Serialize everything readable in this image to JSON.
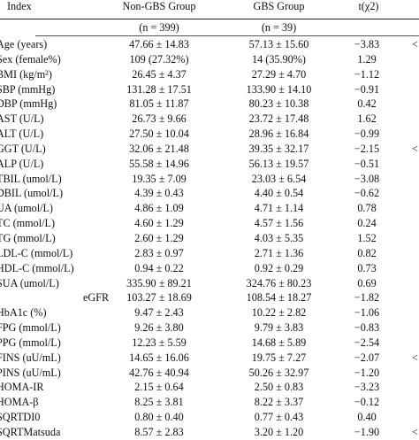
{
  "header": {
    "index": "Index",
    "col1": "Non-GBS Group",
    "col2": "GBS Group",
    "col3": "t(χ2)",
    "col1_n": "(n = 399)",
    "col2_n": "(n = 39)"
  },
  "rows": [
    {
      "label": "Age (years)",
      "v1": "47.66 ± 14.83",
      "v2": "57.13 ± 15.60",
      "t": "−3.83",
      "p": "<"
    },
    {
      "label": "Sex (female%)",
      "v1": "109 (27.32%)",
      "v2": "14 (35.90%)",
      "t": "1.29",
      "p": ""
    },
    {
      "label": "BMI (kg/m²)",
      "v1": "26.45 ± 4.37",
      "v2": "27.29 ± 4.70",
      "t": "−1.12",
      "p": ""
    },
    {
      "label": "SBP (mmHg)",
      "v1": "131.28 ± 17.51",
      "v2": "133.90 ± 14.10",
      "t": "−0.91",
      "p": ""
    },
    {
      "label": "DBP (mmHg)",
      "v1": "81.05 ± 11.87",
      "v2": "80.23 ± 10.38",
      "t": "0.42",
      "p": ""
    },
    {
      "label": "AST (U/L)",
      "v1": "26.73 ± 9.66",
      "v2": "23.72 ± 17.48",
      "t": "1.62",
      "p": ""
    },
    {
      "label": "ALT (U/L)",
      "v1": "27.50 ± 10.04",
      "v2": "28.96 ± 16.84",
      "t": "−0.99",
      "p": ""
    },
    {
      "label": "GGT (U/L)",
      "v1": "32.06 ± 21.48",
      "v2": "39.35 ± 32.17",
      "t": "−2.15",
      "p": "<"
    },
    {
      "label": "ALP (U/L)",
      "v1": "55.58 ± 14.96",
      "v2": "56.13 ± 19.57",
      "t": "−0.51",
      "p": ""
    },
    {
      "label": "TBIL (umol/L)",
      "v1": "19.35 ± 7.09",
      "v2": "23.03 ± 6.54",
      "t": "−3.08",
      "p": ""
    },
    {
      "label": "DBIL (umol/L)",
      "v1": "4.39 ± 0.43",
      "v2": "4.40 ± 0.54",
      "t": "−0.62",
      "p": ""
    },
    {
      "label": "UA (umol/L)",
      "v1": "4.86 ± 1.09",
      "v2": "4.71 ± 1.14",
      "t": "0.78",
      "p": ""
    },
    {
      "label": "TC (mmol/L)",
      "v1": "4.60 ± 1.29",
      "v2": "4.57 ± 1.56",
      "t": "0.24",
      "p": ""
    },
    {
      "label": "TG (mmol/L)",
      "v1": "2.60 ± 1.29",
      "v2": "4.03 ± 5.35",
      "t": "1.52",
      "p": ""
    },
    {
      "label": "LDL-C (mmol/L)",
      "v1": "2.83 ± 0.97",
      "v2": "2.71 ± 1.36",
      "t": "0.82",
      "p": ""
    },
    {
      "label": "HDL-C (mmol/L)",
      "v1": "0.94 ± 0.22",
      "v2": "0.92 ± 0.29",
      "t": "0.73",
      "p": ""
    },
    {
      "label": "SUA (umol/L)",
      "v1": "335.90 ± 89.21",
      "v2": "324.76 ± 80.23",
      "t": "0.69",
      "p": ""
    },
    {
      "label": "eGFR",
      "v1": "103.27 ± 18.69",
      "v2": "108.54 ± 18.27",
      "t": "−1.82",
      "p": "",
      "center": true
    },
    {
      "label": "HbA1c (%)",
      "v1": "9.47 ± 2.43",
      "v2": "10.22 ± 2.82",
      "t": "−1.06",
      "p": ""
    },
    {
      "label": "FPG (mmol/L)",
      "v1": "9.26 ± 3.80",
      "v2": "9.79 ± 3.83",
      "t": "−0.83",
      "p": ""
    },
    {
      "label": "PPG (mmol/L)",
      "v1": "12.23 ± 5.59",
      "v2": "14.68 ± 5.89",
      "t": "−2.54",
      "p": ""
    },
    {
      "label": "FINS (uU/mL)",
      "v1": "14.65 ± 16.06",
      "v2": "19.75 ± 7.27",
      "t": "−2.07",
      "p": "<"
    },
    {
      "label": "PINS (uU/mL)",
      "v1": "42.76 ± 40.94",
      "v2": "50.26 ± 32.97",
      "t": "−1.20",
      "p": ""
    },
    {
      "label": "HOMA-IR",
      "v1": "2.15 ± 0.64",
      "v2": "2.50 ± 0.83",
      "t": "−3.23",
      "p": ""
    },
    {
      "label": "HOMA-β",
      "v1": "8.25 ± 3.81",
      "v2": "8.22 ± 3.37",
      "t": "−0.12",
      "p": ""
    },
    {
      "label": "SQRTDI0",
      "v1": "0.80 ± 0.40",
      "v2": "0.77 ± 0.43",
      "t": "0.40",
      "p": ""
    },
    {
      "label": "SQRTMatsuda",
      "v1": "8.57 ± 2.83",
      "v2": "3.20 ± 1.20",
      "t": "−1.90",
      "p": "<"
    }
  ]
}
